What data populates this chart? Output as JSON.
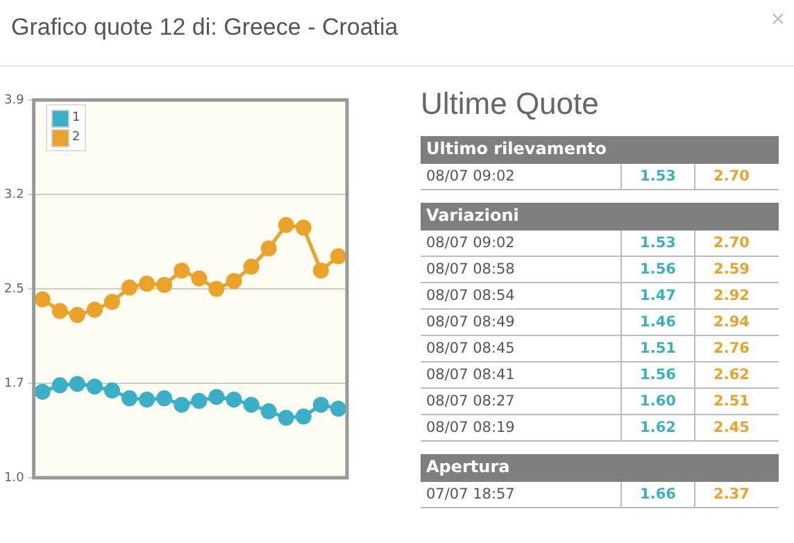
{
  "chart_data": {
    "type": "line",
    "title": "Grafico quote 12 di: Greece - Croatia",
    "categories": [
      null,
      null,
      null,
      null,
      null,
      null,
      null,
      null,
      null,
      null,
      null,
      null,
      null,
      null,
      null,
      null,
      null,
      null
    ],
    "series": [
      {
        "name": "1",
        "color": "#3aafc6",
        "values": [
          1.66,
          1.71,
          1.72,
          1.7,
          1.67,
          1.61,
          1.6,
          1.61,
          1.56,
          1.59,
          1.62,
          1.6,
          1.56,
          1.51,
          1.46,
          1.47,
          1.56,
          1.53
        ]
      },
      {
        "name": "2",
        "color": "#eaa22a",
        "values": [
          2.37,
          2.28,
          2.25,
          2.29,
          2.35,
          2.46,
          2.49,
          2.48,
          2.59,
          2.53,
          2.45,
          2.51,
          2.62,
          2.76,
          2.94,
          2.92,
          2.59,
          2.7
        ]
      }
    ],
    "ylim": [
      1.0,
      3.9
    ],
    "yticks": [
      {
        "value": 1.0,
        "label": "1.0"
      },
      {
        "value": 1.725,
        "label": "1.7"
      },
      {
        "value": 2.45,
        "label": "2.5"
      },
      {
        "value": 3.175,
        "label": "3.2"
      },
      3.9
    ],
    "grid": "y",
    "legend": "top left",
    "marker": "circle",
    "line_style": "solid",
    "tick_labels": "y",
    "annotations": [
      "Ultime Quote",
      "Ultimo rilevamento",
      "08/07 09:02",
      "1.53",
      "2.70",
      "Variazioni",
      "08/07 09:02",
      "1.53",
      "2.70",
      "08/07 08:58",
      "1.56",
      "2.59",
      "08/07 08:54",
      "1.47",
      "2.92",
      "08/07 08:49",
      "1.46",
      "2.94",
      "08/07 08:45",
      "1.51",
      "2.76",
      "08/07 08:41",
      "1.56",
      "2.62",
      "08/07 08:27",
      "1.60",
      "2.51",
      "08/07 08:19",
      "1.62",
      "2.45",
      "Apertura",
      "07/07 18:57",
      "1.66",
      "2.37"
    ]
  }
}
